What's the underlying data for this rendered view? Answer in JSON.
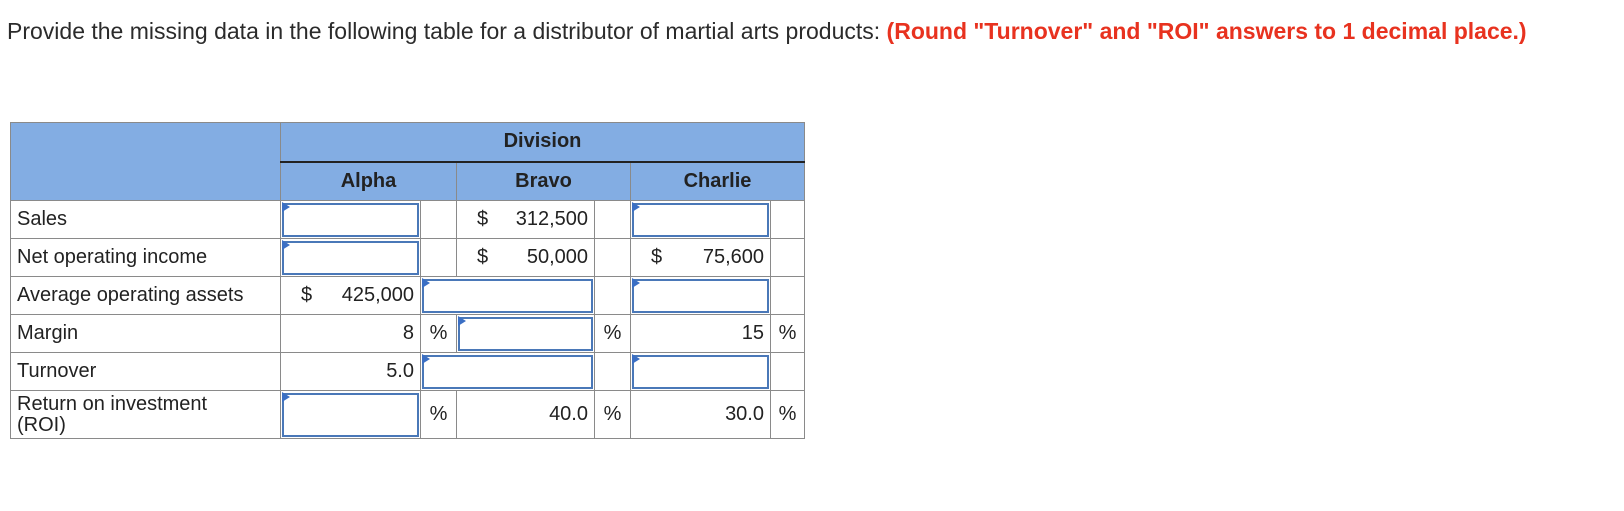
{
  "question": {
    "text": "Provide the missing data in the following table for a distributor of martial arts products: ",
    "instruction": "(Round \"Turnover\" and \"ROI\" answers to 1 decimal place.)"
  },
  "table": {
    "group_header": "Division",
    "columns": [
      "Alpha",
      "Bravo",
      "Charlie"
    ],
    "rows": {
      "sales": {
        "label": "Sales",
        "bravo": "312,500",
        "bravo_cur": "$"
      },
      "noi": {
        "label": "Net operating income",
        "bravo": "50,000",
        "bravo_cur": "$",
        "charlie": "75,600",
        "charlie_cur": "$"
      },
      "assets": {
        "label": "Average operating assets",
        "alpha": "425,000",
        "alpha_cur": "$"
      },
      "margin": {
        "label": "Margin",
        "alpha": "8",
        "charlie": "15",
        "unit": "%"
      },
      "turnover": {
        "label": "Turnover",
        "alpha": "5.0"
      },
      "roi": {
        "label_line1": "Return on investment",
        "label_line2": "(ROI)",
        "bravo": "40.0",
        "charlie": "30.0",
        "unit": "%"
      }
    }
  }
}
